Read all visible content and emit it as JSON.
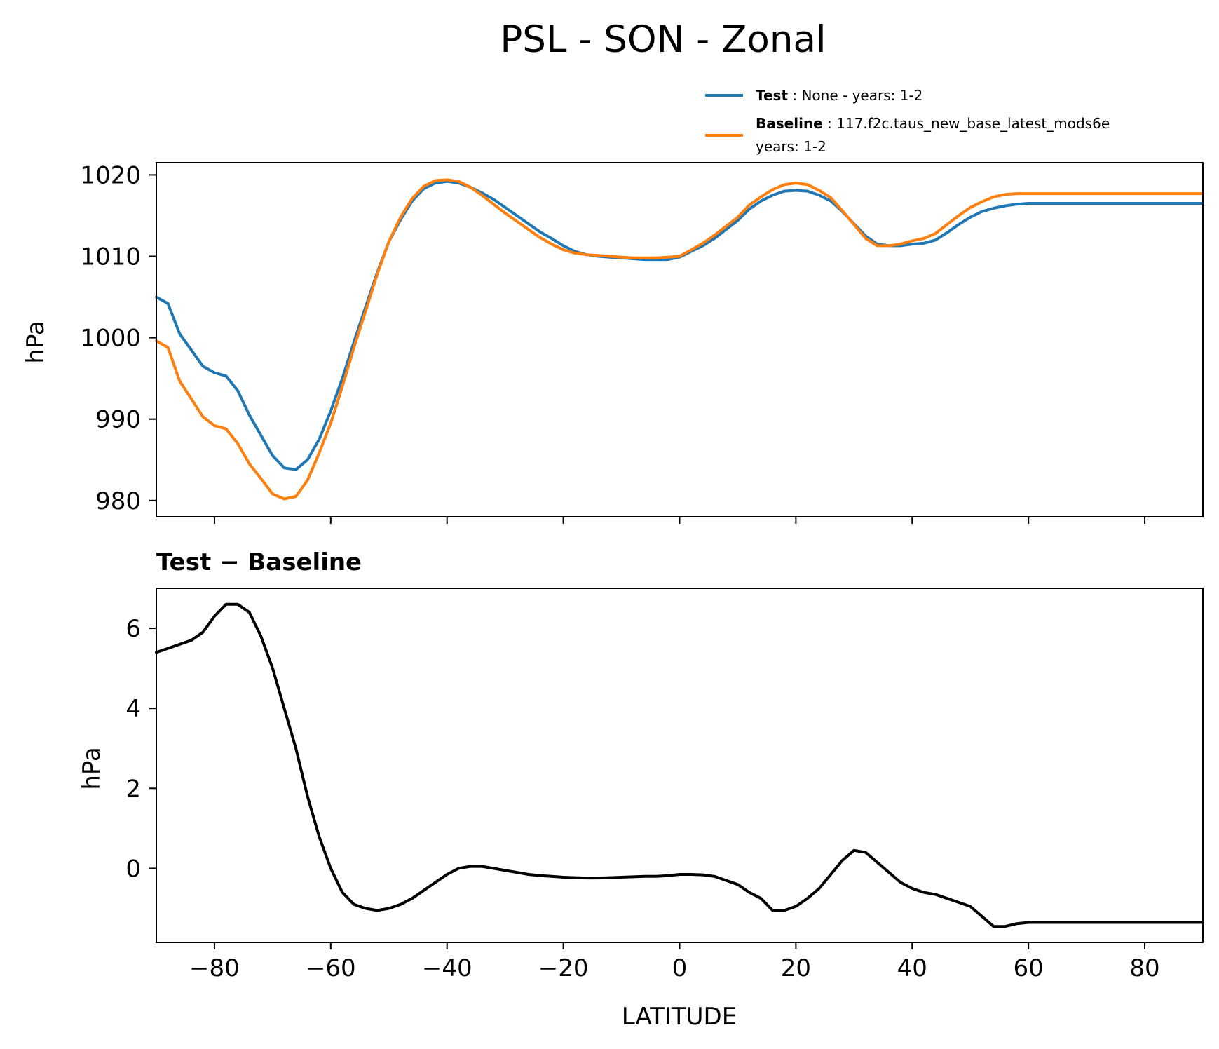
{
  "figure": {
    "title": "PSL - SON - Zonal"
  },
  "legend": {
    "test_label": "Test",
    "test_desc": ": None - years: 1-2",
    "baseline_label": "Baseline",
    "baseline_desc": ": 117.f2c.taus_new_base_latest_mods6e",
    "baseline_desc_line2": "years: 1-2"
  },
  "colors": {
    "test": "#1f77b4",
    "baseline": "#ff7f0e",
    "difference": "#000000",
    "axes": "#000000"
  },
  "chart_data": [
    {
      "type": "line",
      "title": "",
      "xlabel": "",
      "ylabel": "hPa",
      "xlim": [
        -90,
        90
      ],
      "ylim": [
        978,
        1021.5
      ],
      "xticks": [
        -80,
        -60,
        -40,
        -20,
        0,
        20,
        40,
        60,
        80
      ],
      "yticks": [
        980,
        990,
        1000,
        1010,
        1020
      ],
      "ytick_labels": [
        "980",
        "990",
        "1000",
        "1010",
        "1020"
      ],
      "x": [
        -90,
        -88,
        -86,
        -84,
        -82,
        -80,
        -78,
        -76,
        -74,
        -72,
        -70,
        -68,
        -66,
        -64,
        -62,
        -60,
        -58,
        -56,
        -54,
        -52,
        -50,
        -48,
        -46,
        -44,
        -42,
        -40,
        -38,
        -36,
        -34,
        -32,
        -30,
        -28,
        -26,
        -24,
        -22,
        -20,
        -18,
        -16,
        -14,
        -12,
        -10,
        -8,
        -6,
        -4,
        -2,
        0,
        2,
        4,
        6,
        8,
        10,
        12,
        14,
        16,
        18,
        20,
        22,
        24,
        26,
        28,
        30,
        32,
        34,
        36,
        38,
        40,
        42,
        44,
        46,
        48,
        50,
        52,
        54,
        56,
        58,
        60,
        62,
        64,
        66,
        68,
        70,
        72,
        74,
        76,
        78,
        80,
        82,
        84,
        86,
        88,
        90
      ],
      "series": [
        {
          "name": "Test",
          "color": "#1f77b4",
          "values": [
            1005.0,
            1004.2,
            1000.5,
            998.5,
            996.5,
            995.7,
            995.3,
            993.5,
            990.5,
            988.0,
            985.5,
            984.0,
            983.8,
            985.0,
            987.5,
            991.0,
            995.0,
            999.5,
            1003.8,
            1008.0,
            1011.8,
            1014.5,
            1016.8,
            1018.3,
            1019.0,
            1019.2,
            1019.0,
            1018.5,
            1017.8,
            1017.0,
            1016.0,
            1015.0,
            1014.0,
            1013.0,
            1012.2,
            1011.3,
            1010.6,
            1010.2,
            1010.0,
            1009.9,
            1009.8,
            1009.7,
            1009.6,
            1009.6,
            1009.6,
            1009.9,
            1010.6,
            1011.3,
            1012.2,
            1013.3,
            1014.4,
            1015.8,
            1016.8,
            1017.5,
            1018.0,
            1018.1,
            1018.0,
            1017.5,
            1016.8,
            1015.5,
            1014.0,
            1012.5,
            1011.5,
            1011.3,
            1011.3,
            1011.5,
            1011.6,
            1012.0,
            1012.9,
            1013.9,
            1014.8,
            1015.5,
            1015.9,
            1016.2,
            1016.4,
            1016.5,
            1016.5,
            1016.5,
            1016.5,
            1016.5,
            1016.5,
            1016.5,
            1016.5,
            1016.5,
            1016.5,
            1016.5,
            1016.5,
            1016.5,
            1016.5,
            1016.5,
            1016.5
          ]
        },
        {
          "name": "Baseline",
          "color": "#ff7f0e",
          "values": [
            999.6,
            998.8,
            994.7,
            992.5,
            990.3,
            989.2,
            988.8,
            987.0,
            984.5,
            982.7,
            980.8,
            980.2,
            980.5,
            982.5,
            985.8,
            989.5,
            994.0,
            998.8,
            1003.3,
            1007.8,
            1011.8,
            1014.8,
            1017.1,
            1018.6,
            1019.3,
            1019.4,
            1019.2,
            1018.5,
            1017.5,
            1016.4,
            1015.3,
            1014.3,
            1013.3,
            1012.3,
            1011.5,
            1010.8,
            1010.4,
            1010.2,
            1010.1,
            1010.0,
            1009.9,
            1009.8,
            1009.8,
            1009.8,
            1009.9,
            1010.0,
            1010.8,
            1011.6,
            1012.6,
            1013.7,
            1014.8,
            1016.3,
            1017.3,
            1018.2,
            1018.8,
            1019.0,
            1018.8,
            1018.1,
            1017.2,
            1015.6,
            1013.9,
            1012.2,
            1011.3,
            1011.3,
            1011.5,
            1011.9,
            1012.2,
            1012.8,
            1013.9,
            1015.0,
            1016.0,
            1016.7,
            1017.3,
            1017.6,
            1017.7,
            1017.7,
            1017.7,
            1017.7,
            1017.7,
            1017.7,
            1017.7,
            1017.7,
            1017.7,
            1017.7,
            1017.7,
            1017.7,
            1017.7,
            1017.7,
            1017.7,
            1017.7,
            1017.7
          ]
        }
      ]
    },
    {
      "type": "line",
      "title": "Test − Baseline",
      "xlabel": "LATITUDE",
      "ylabel": "hPa",
      "xlim": [
        -90,
        90
      ],
      "ylim": [
        -1.85,
        7.0
      ],
      "xticks": [
        -80,
        -60,
        -40,
        -20,
        0,
        20,
        40,
        60,
        80
      ],
      "xtick_labels": [
        "−80",
        "−60",
        "−40",
        "−20",
        "0",
        "20",
        "40",
        "60",
        "80"
      ],
      "yticks": [
        0,
        2,
        4,
        6
      ],
      "ytick_labels": [
        "0",
        "2",
        "4",
        "6"
      ],
      "x": [
        -90,
        -88,
        -86,
        -84,
        -82,
        -80,
        -78,
        -76,
        -74,
        -72,
        -70,
        -68,
        -66,
        -64,
        -62,
        -60,
        -58,
        -56,
        -54,
        -52,
        -50,
        -48,
        -46,
        -44,
        -42,
        -40,
        -38,
        -36,
        -34,
        -32,
        -30,
        -28,
        -26,
        -24,
        -22,
        -20,
        -18,
        -16,
        -14,
        -12,
        -10,
        -8,
        -6,
        -4,
        -2,
        0,
        2,
        4,
        6,
        8,
        10,
        12,
        14,
        16,
        18,
        20,
        22,
        24,
        26,
        28,
        30,
        32,
        34,
        36,
        38,
        40,
        42,
        44,
        46,
        48,
        50,
        52,
        54,
        56,
        58,
        60,
        62,
        64,
        66,
        68,
        70,
        72,
        74,
        76,
        78,
        80,
        82,
        84,
        86,
        88,
        90
      ],
      "series": [
        {
          "name": "Test − Baseline",
          "color": "#000000",
          "values": [
            5.4,
            5.5,
            5.6,
            5.7,
            5.9,
            6.3,
            6.6,
            6.6,
            6.4,
            5.8,
            5.0,
            4.0,
            3.0,
            1.8,
            0.8,
            0.0,
            -0.6,
            -0.9,
            -1.0,
            -1.05,
            -1.0,
            -0.9,
            -0.75,
            -0.55,
            -0.35,
            -0.15,
            0.0,
            0.05,
            0.05,
            0.0,
            -0.05,
            -0.1,
            -0.15,
            -0.18,
            -0.2,
            -0.22,
            -0.23,
            -0.24,
            -0.24,
            -0.23,
            -0.22,
            -0.21,
            -0.2,
            -0.2,
            -0.18,
            -0.15,
            -0.15,
            -0.16,
            -0.2,
            -0.3,
            -0.4,
            -0.6,
            -0.75,
            -1.05,
            -1.05,
            -0.95,
            -0.75,
            -0.5,
            -0.15,
            0.2,
            0.45,
            0.4,
            0.15,
            -0.1,
            -0.35,
            -0.5,
            -0.6,
            -0.65,
            -0.75,
            -0.85,
            -0.95,
            -1.2,
            -1.45,
            -1.45,
            -1.38,
            -1.35,
            -1.35,
            -1.35,
            -1.35,
            -1.35,
            -1.35,
            -1.35,
            -1.35,
            -1.35,
            -1.35,
            -1.35,
            -1.35,
            -1.35,
            -1.35,
            -1.35,
            -1.35
          ]
        }
      ]
    }
  ]
}
